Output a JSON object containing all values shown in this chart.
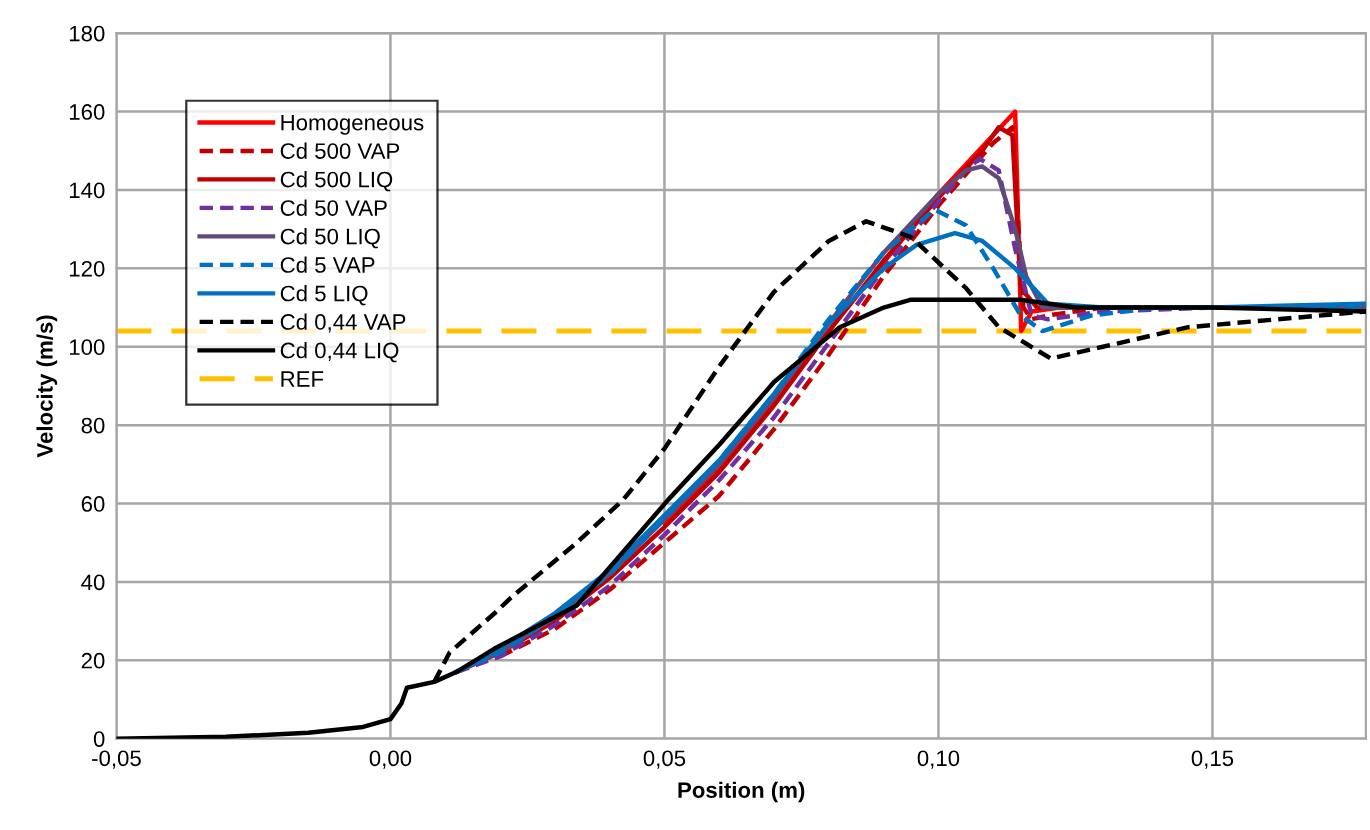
{
  "chart_data": {
    "type": "line",
    "xlabel": "Position (m)",
    "ylabel": "Velocity (m/s)",
    "xlim": [
      -0.05,
      0.178
    ],
    "ylim": [
      0,
      180
    ],
    "xticks": [
      {
        "value": -0.05,
        "label": "-0,05"
      },
      {
        "value": 0.0,
        "label": "0,00"
      },
      {
        "value": 0.05,
        "label": "0,05"
      },
      {
        "value": 0.1,
        "label": "0,10"
      },
      {
        "value": 0.15,
        "label": "0,15"
      }
    ],
    "yticks": [
      0,
      20,
      40,
      60,
      80,
      100,
      120,
      140,
      160,
      180
    ],
    "grid": true,
    "legend": "top left",
    "series": [
      {
        "name": "Homogeneous",
        "color": "#ff0000",
        "line_style": "solid",
        "x": [
          0.05,
          0.06,
          0.1,
          0.114,
          0.1151,
          0.117,
          0.122
        ],
        "values": [
          55,
          69,
          139,
          160,
          104,
          109,
          110
        ]
      },
      {
        "name": "Cd 500 VAP",
        "color": "#c00000",
        "line_style": "dashed",
        "x": [
          0.02,
          0.03,
          0.04,
          0.05,
          0.06,
          0.07,
          0.08,
          0.09,
          0.1,
          0.11,
          0.1135,
          0.1155,
          0.117,
          0.12,
          0.13,
          0.15,
          0.178
        ],
        "values": [
          21,
          28,
          38,
          50,
          62,
          79,
          98,
          118,
          136,
          152,
          156,
          110,
          107,
          108,
          110,
          110,
          110
        ]
      },
      {
        "name": "Cd 500 LIQ",
        "color": "#c00000",
        "line_style": "solid",
        "x": [
          0.012,
          0.02,
          0.03,
          0.04,
          0.05,
          0.06,
          0.07,
          0.08,
          0.09,
          0.1,
          0.108,
          0.111,
          0.1135,
          0.115,
          0.118,
          0.125,
          0.15,
          0.178
        ],
        "values": [
          17,
          22,
          30,
          41,
          54,
          68,
          85,
          104,
          122,
          138,
          150,
          156,
          154,
          115,
          110,
          110,
          110,
          110
        ]
      },
      {
        "name": "Cd 50 VAP",
        "color": "#7030a0",
        "line_style": "dashed",
        "x": [
          0.012,
          0.02,
          0.03,
          0.04,
          0.05,
          0.06,
          0.07,
          0.08,
          0.09,
          0.1,
          0.105,
          0.1075,
          0.111,
          0.114,
          0.117,
          0.12,
          0.13,
          0.15,
          0.178
        ],
        "values": [
          17,
          21,
          29,
          39,
          52,
          66,
          82,
          101,
          120,
          137,
          145,
          148,
          145,
          125,
          108,
          107,
          109,
          110,
          110
        ]
      },
      {
        "name": "Cd 50 LIQ",
        "color": "#604a7b",
        "line_style": "solid",
        "x": [
          0.012,
          0.02,
          0.03,
          0.04,
          0.05,
          0.06,
          0.07,
          0.08,
          0.09,
          0.1,
          0.105,
          0.108,
          0.111,
          0.114,
          0.116,
          0.119,
          0.125,
          0.15,
          0.178
        ],
        "values": [
          17,
          22,
          31,
          42,
          56,
          70,
          87,
          106,
          124,
          139,
          145,
          146,
          143,
          130,
          118,
          110,
          110,
          110,
          110
        ]
      },
      {
        "name": "Cd 5 VAP",
        "color": "#0070c0",
        "line_style": "dashed",
        "x": [
          0.012,
          0.02,
          0.03,
          0.04,
          0.05,
          0.06,
          0.07,
          0.08,
          0.09,
          0.0993,
          0.105,
          0.11,
          0.115,
          0.119,
          0.128,
          0.14,
          0.178
        ],
        "values": [
          17,
          22,
          31,
          42,
          56,
          71,
          88,
          107,
          124,
          135,
          131,
          120,
          108,
          104,
          108,
          110,
          110
        ]
      },
      {
        "name": "Cd 5 LIQ",
        "color": "#0070c0",
        "line_style": "solid",
        "x": [
          0.012,
          0.02,
          0.03,
          0.04,
          0.05,
          0.06,
          0.07,
          0.08,
          0.09,
          0.096,
          0.103,
          0.108,
          0.114,
          0.12,
          0.13,
          0.15,
          0.178
        ],
        "values": [
          17,
          23,
          32,
          43,
          57,
          71,
          88,
          106,
          120,
          126,
          129,
          127,
          120,
          111,
          110,
          110,
          111
        ]
      },
      {
        "name": "Cd 0,44 VAP",
        "color": "#000000",
        "line_style": "dashed",
        "x": [
          0.008,
          0.0108,
          0.019,
          0.022,
          0.034,
          0.0425,
          0.05,
          0.06,
          0.07,
          0.08,
          0.0868,
          0.095,
          0.105,
          0.111,
          0.1205,
          0.13,
          0.1456,
          0.178
        ],
        "values": [
          14.5,
          22,
          32,
          36,
          50,
          61,
          74,
          95,
          114,
          127,
          132,
          128,
          115,
          105,
          97,
          100,
          105,
          109
        ]
      },
      {
        "name": "Cd 0,44 LIQ",
        "color": "#000000",
        "line_style": "solid",
        "x": [
          -0.05,
          -0.03,
          -0.015,
          -0.005,
          0,
          0.002,
          0.003,
          0.008,
          0.012,
          0.019,
          0.034,
          0.0507,
          0.06,
          0.07,
          0.082,
          0.09,
          0.095,
          0.115,
          0.125,
          0.15,
          0.178
        ],
        "values": [
          0,
          0.5,
          1.5,
          3,
          5,
          9,
          13,
          14.5,
          17,
          23,
          34,
          61,
          75,
          91,
          105,
          110,
          112,
          112,
          110,
          110,
          109
        ]
      }
    ],
    "ref_lines": [
      {
        "axis": "y",
        "value": 104,
        "label": "REF",
        "color": "#ffc000",
        "line_style": "dashed"
      }
    ]
  }
}
